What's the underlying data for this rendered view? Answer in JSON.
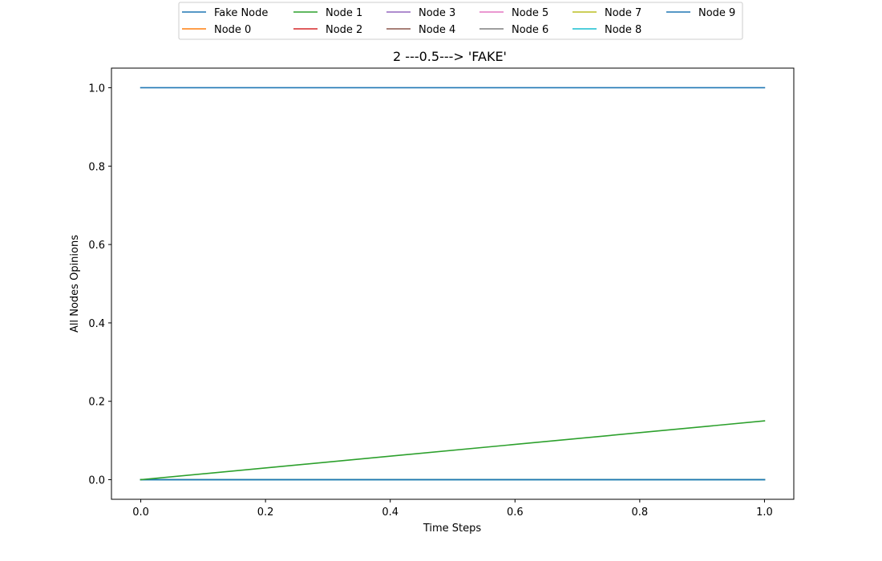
{
  "chart_data": {
    "type": "line",
    "title": "2 ---0.5---> 'FAKE'",
    "xlabel": "Time Steps",
    "ylabel": "All Nodes Opinions",
    "x": [
      0.0,
      1.0
    ],
    "xlim": [
      -0.047,
      1.047
    ],
    "ylim": [
      -0.05,
      1.05
    ],
    "xticks": [
      0.0,
      0.2,
      0.4,
      0.6,
      0.8,
      1.0
    ],
    "yticks": [
      0.0,
      0.2,
      0.4,
      0.6,
      0.8,
      1.0
    ],
    "xtick_labels": [
      "0.0",
      "0.2",
      "0.4",
      "0.6",
      "0.8",
      "1.0"
    ],
    "ytick_labels": [
      "0.0",
      "0.2",
      "0.4",
      "0.6",
      "0.8",
      "1.0"
    ],
    "grid": false,
    "legend_position": "top-center",
    "legend_columns": 6,
    "series": [
      {
        "name": "Fake Node",
        "color": "#1f77b4",
        "values": [
          1.0,
          1.0
        ]
      },
      {
        "name": "Node 0",
        "color": "#ff7f0e",
        "values": [
          0.0,
          0.0
        ]
      },
      {
        "name": "Node 1",
        "color": "#2ca02c",
        "values": [
          0.0,
          0.0
        ]
      },
      {
        "name": "Node 2",
        "color": "#d62728",
        "values": [
          0.0,
          0.0
        ]
      },
      {
        "name": "Node 3",
        "color": "#9467bd",
        "values": [
          0.0,
          0.0
        ]
      },
      {
        "name": "Node 4",
        "color": "#8c564b",
        "values": [
          0.0,
          0.0
        ]
      },
      {
        "name": "Node 5",
        "color": "#e377c2",
        "values": [
          0.0,
          0.0
        ]
      },
      {
        "name": "Node 6",
        "color": "#7f7f7f",
        "values": [
          0.0,
          0.0
        ]
      },
      {
        "name": "Node 7",
        "color": "#bcbd22",
        "values": [
          0.0,
          0.0
        ]
      },
      {
        "name": "Node 8",
        "color": "#17becf",
        "values": [
          0.0,
          0.0
        ]
      },
      {
        "name": "Node 9",
        "color": "#1f77b4",
        "values": [
          0.0,
          0.0
        ]
      },
      {
        "name": "Node 1",
        "color": "#2ca02c",
        "values": [
          0.0,
          0.15
        ]
      }
    ]
  }
}
